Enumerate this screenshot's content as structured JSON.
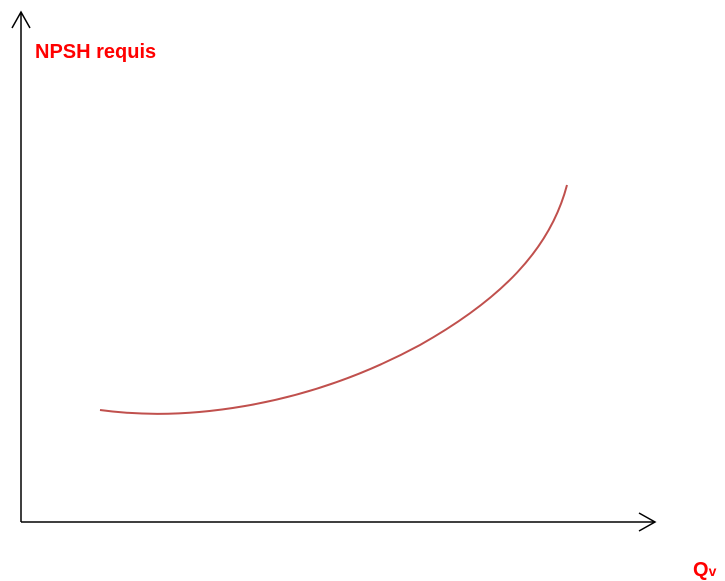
{
  "y_axis_label": "NPSH requis",
  "x_axis_label": {
    "main": "Q",
    "sub": "v"
  }
}
